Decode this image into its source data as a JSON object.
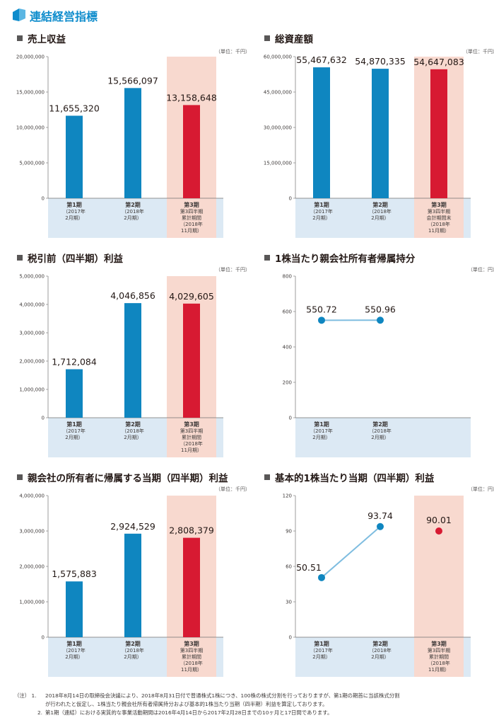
{
  "page": {
    "title": "連結経営指標",
    "title_color": "#0e8ccc"
  },
  "colors": {
    "bar_blue": "#0f86c0",
    "bar_red": "#d71a32",
    "highlight": "#f8d9cf",
    "axis_band": "#dce9f4",
    "line": "#7fbde0",
    "dot": "#0f86c0"
  },
  "chart_data": [
    {
      "id": "revenue",
      "type": "bar",
      "title": "売上収益",
      "unit": "（単位：千円）",
      "ylim": [
        0,
        20000000
      ],
      "yticks": [
        "0",
        "5,000,000",
        "10,000,000",
        "15,000,000",
        "20,000,000"
      ],
      "values": [
        11655320,
        15566097,
        13158648
      ],
      "value_labels": [
        "11,655,320",
        "15,566,097",
        "13,158,648"
      ],
      "categories": [
        [
          "第1期",
          "（2017年",
          "2月期）"
        ],
        [
          "第2期",
          "（2018年",
          "2月期）"
        ],
        [
          "第3期",
          "第3四半期",
          "累計期間",
          "（2018年",
          "11月期）"
        ]
      ]
    },
    {
      "id": "total-assets",
      "type": "bar",
      "title": "総資産額",
      "unit": "（単位：千円）",
      "ylim": [
        0,
        60000000
      ],
      "yticks": [
        "0",
        "15,000,000",
        "30,000,000",
        "45,000,000",
        "60,000,000"
      ],
      "values": [
        55467632,
        54870335,
        54647083
      ],
      "value_labels": [
        "55,467,632",
        "54,870,335",
        "54,647,083"
      ],
      "categories": [
        [
          "第1期",
          "（2017年",
          "2月期）"
        ],
        [
          "第2期",
          "（2018年",
          "2月期）"
        ],
        [
          "第3期",
          "第3四半期",
          "会計期間末",
          "（2018年",
          "11月期）"
        ]
      ]
    },
    {
      "id": "pretax-profit",
      "type": "bar",
      "title": "税引前（四半期）利益",
      "unit": "（単位：千円）",
      "ylim": [
        0,
        5000000
      ],
      "yticks": [
        "0",
        "1,000,000",
        "2,000,000",
        "3,000,000",
        "4,000,000",
        "5,000,000"
      ],
      "values": [
        1712084,
        4046856,
        4029605
      ],
      "value_labels": [
        "1,712,084",
        "4,046,856",
        "4,029,605"
      ],
      "categories": [
        [
          "第1期",
          "（2017年",
          "2月期）"
        ],
        [
          "第2期",
          "（2018年",
          "2月期）"
        ],
        [
          "第3期",
          "第3四半期",
          "累計期間",
          "（2018年",
          "11月期）"
        ]
      ]
    },
    {
      "id": "equity-per-share",
      "type": "line",
      "title": "1株当たり親会社所有者帰属持分",
      "unit": "（単位：円）",
      "ylim": [
        0,
        800
      ],
      "yticks": [
        "0",
        "200",
        "400",
        "600",
        "800"
      ],
      "values": [
        550.72,
        550.96
      ],
      "value_labels": [
        "550.72",
        "550.96"
      ],
      "categories": [
        [
          "第1期",
          "（2017年",
          "2月期）"
        ],
        [
          "第2期",
          "（2018年",
          "2月期）"
        ]
      ]
    },
    {
      "id": "net-profit",
      "type": "bar",
      "title": "親会社の所有者に帰属する当期（四半期）利益",
      "unit": "（単位：千円）",
      "ylim": [
        0,
        4000000
      ],
      "yticks": [
        "0",
        "1,000,000",
        "2,000,000",
        "3,000,000",
        "4,000,000"
      ],
      "values": [
        1575883,
        2924529,
        2808379
      ],
      "value_labels": [
        "1,575,883",
        "2,924,529",
        "2,808,379"
      ],
      "categories": [
        [
          "第1期",
          "（2017年",
          "2月期）"
        ],
        [
          "第2期",
          "（2018年",
          "2月期）"
        ],
        [
          "第3期",
          "第3四半期",
          "累計期間",
          "（2018年",
          "11月期）"
        ]
      ]
    },
    {
      "id": "eps",
      "type": "line",
      "title": "基本的1株当たり当期（四半期）利益",
      "unit": "（単位：円）",
      "ylim": [
        0,
        120
      ],
      "yticks": [
        "0",
        "30",
        "60",
        "90",
        "120"
      ],
      "values": [
        50.51,
        93.74,
        90.01
      ],
      "value_labels": [
        "50.51",
        "93.74",
        "90.01"
      ],
      "categories": [
        [
          "第1期",
          "（2017年",
          "2月期）"
        ],
        [
          "第2期",
          "（2018年",
          "2月期）"
        ],
        [
          "第3期",
          "第3四半期",
          "累計期間",
          "（2018年",
          "11月期）"
        ]
      ]
    }
  ],
  "notes": {
    "tag": "（注）",
    "items": [
      {
        "num": "1.",
        "text": "2018年8月14日の取締役会決議により、2018年8月31日付で普通株式1株につき、100株の株式分割を行っておりますが、第1期の期首に当該株式分割",
        "cont": "が行われたと仮定し、1株当たり親会社所有者帰属持分および基本的1株当たり当期（四半期）利益を算定しております。"
      },
      {
        "num": "2.",
        "text": "第1期（連結）における実質的な事業活動期間は2016年4月14日から2017年2月28日までの10ヶ月と17日間であります。"
      }
    ]
  }
}
